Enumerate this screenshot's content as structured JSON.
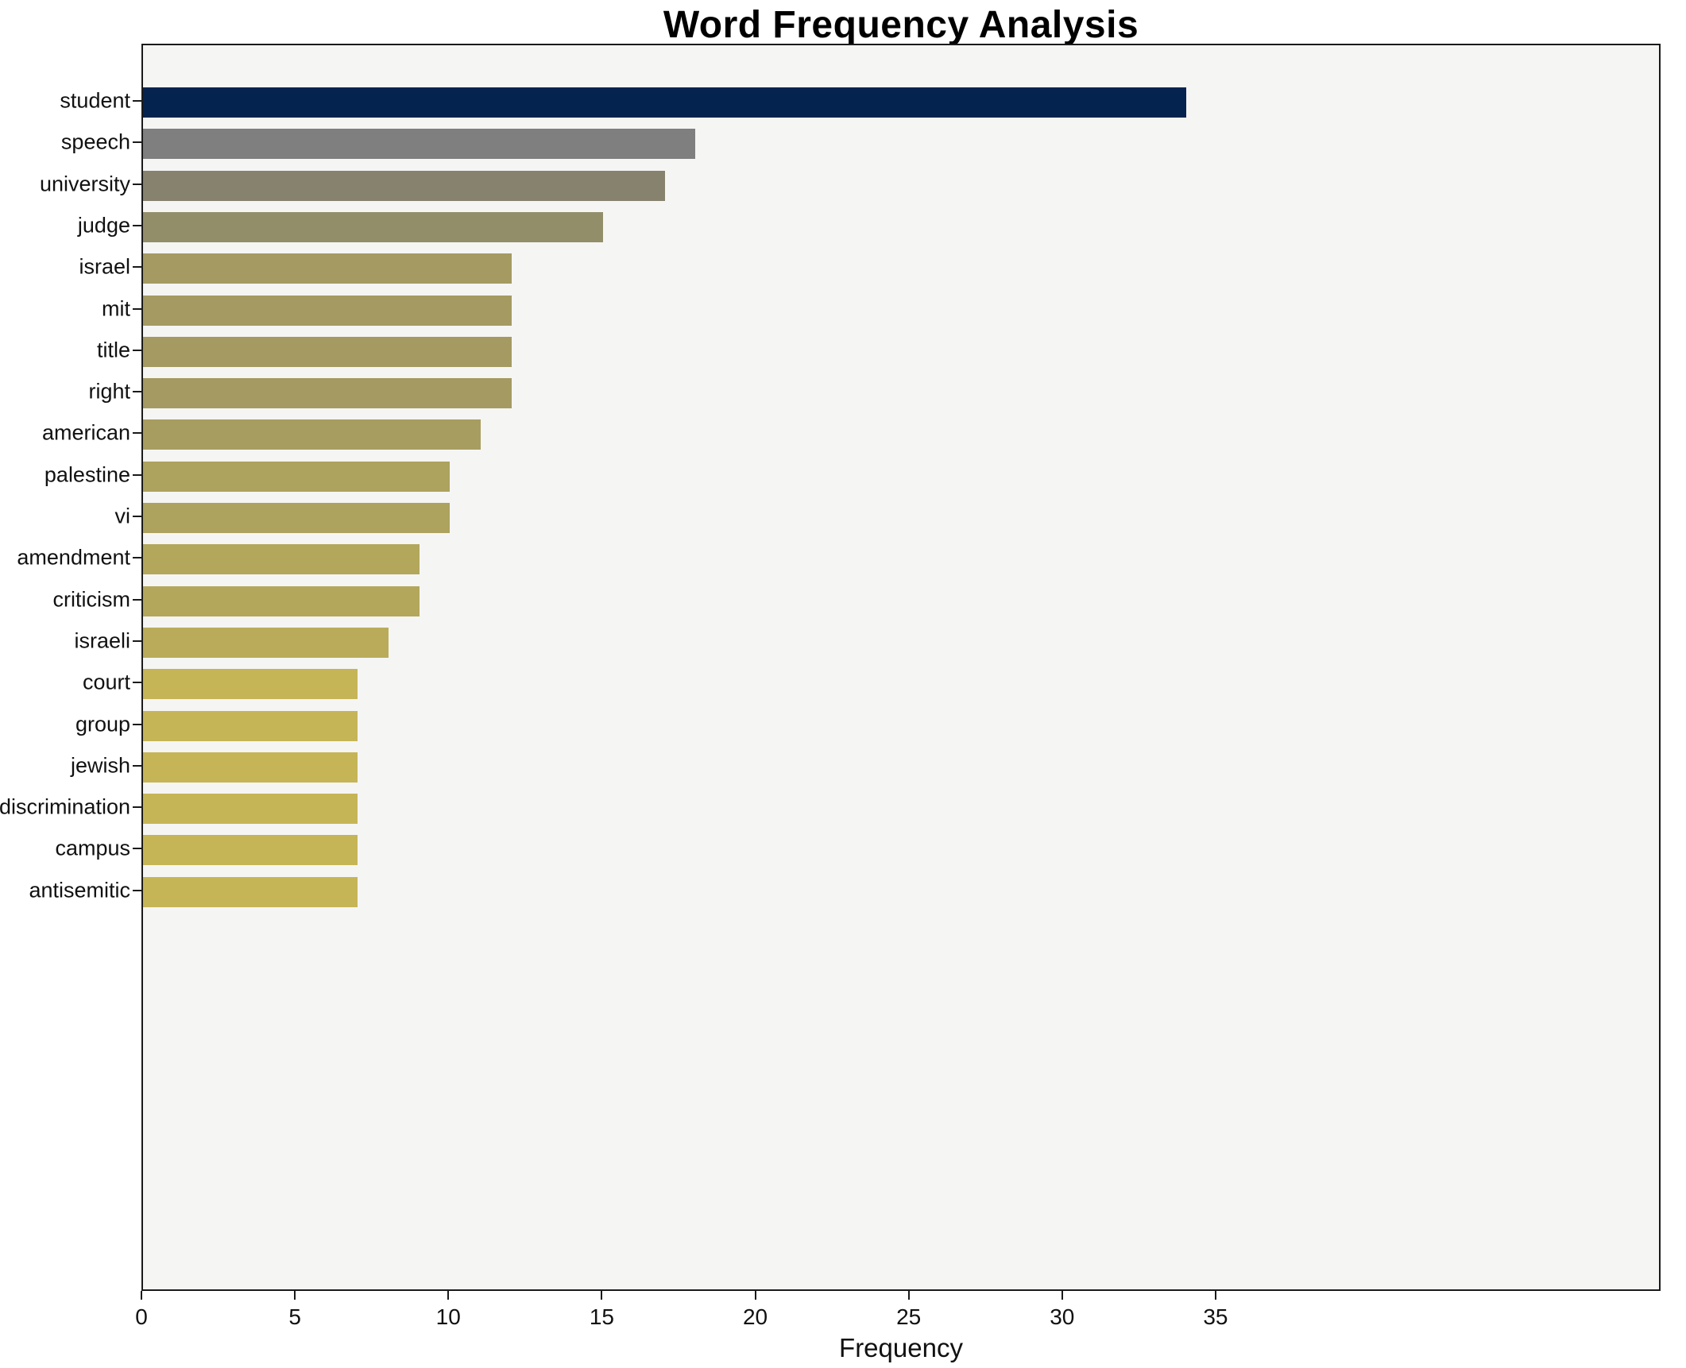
{
  "chart_data": {
    "type": "bar",
    "orientation": "horizontal",
    "title": "Word Frequency Analysis",
    "xlabel": "Frequency",
    "ylabel": "",
    "categories": [
      "student",
      "speech",
      "university",
      "judge",
      "israel",
      "mit",
      "title",
      "right",
      "american",
      "palestine",
      "vi",
      "amendment",
      "criticism",
      "israeli",
      "court",
      "group",
      "jewish",
      "discrimination",
      "campus",
      "antisemitic"
    ],
    "values": [
      34,
      18,
      17,
      15,
      12,
      12,
      12,
      12,
      11,
      10,
      10,
      9,
      9,
      8,
      7,
      7,
      7,
      7,
      7,
      7
    ],
    "colors": [
      "#04234f",
      "#7f7f7f",
      "#87826e",
      "#938e6a",
      "#a49a62",
      "#a49a62",
      "#a49a62",
      "#a49a62",
      "#a89d60",
      "#ada25e",
      "#ada25e",
      "#b3a75c",
      "#b3a75c",
      "#b9ab5a",
      "#c5b557",
      "#c5b557",
      "#c5b557",
      "#c6b556",
      "#c6b556",
      "#c6b556"
    ],
    "xticks": [
      0,
      5,
      10,
      15,
      20,
      25,
      30,
      35
    ],
    "xlim": [
      0,
      49.5
    ],
    "grid": false,
    "legend": null,
    "plot_bg": "#f5f5f4",
    "spine_color": "#1a1a1a"
  }
}
